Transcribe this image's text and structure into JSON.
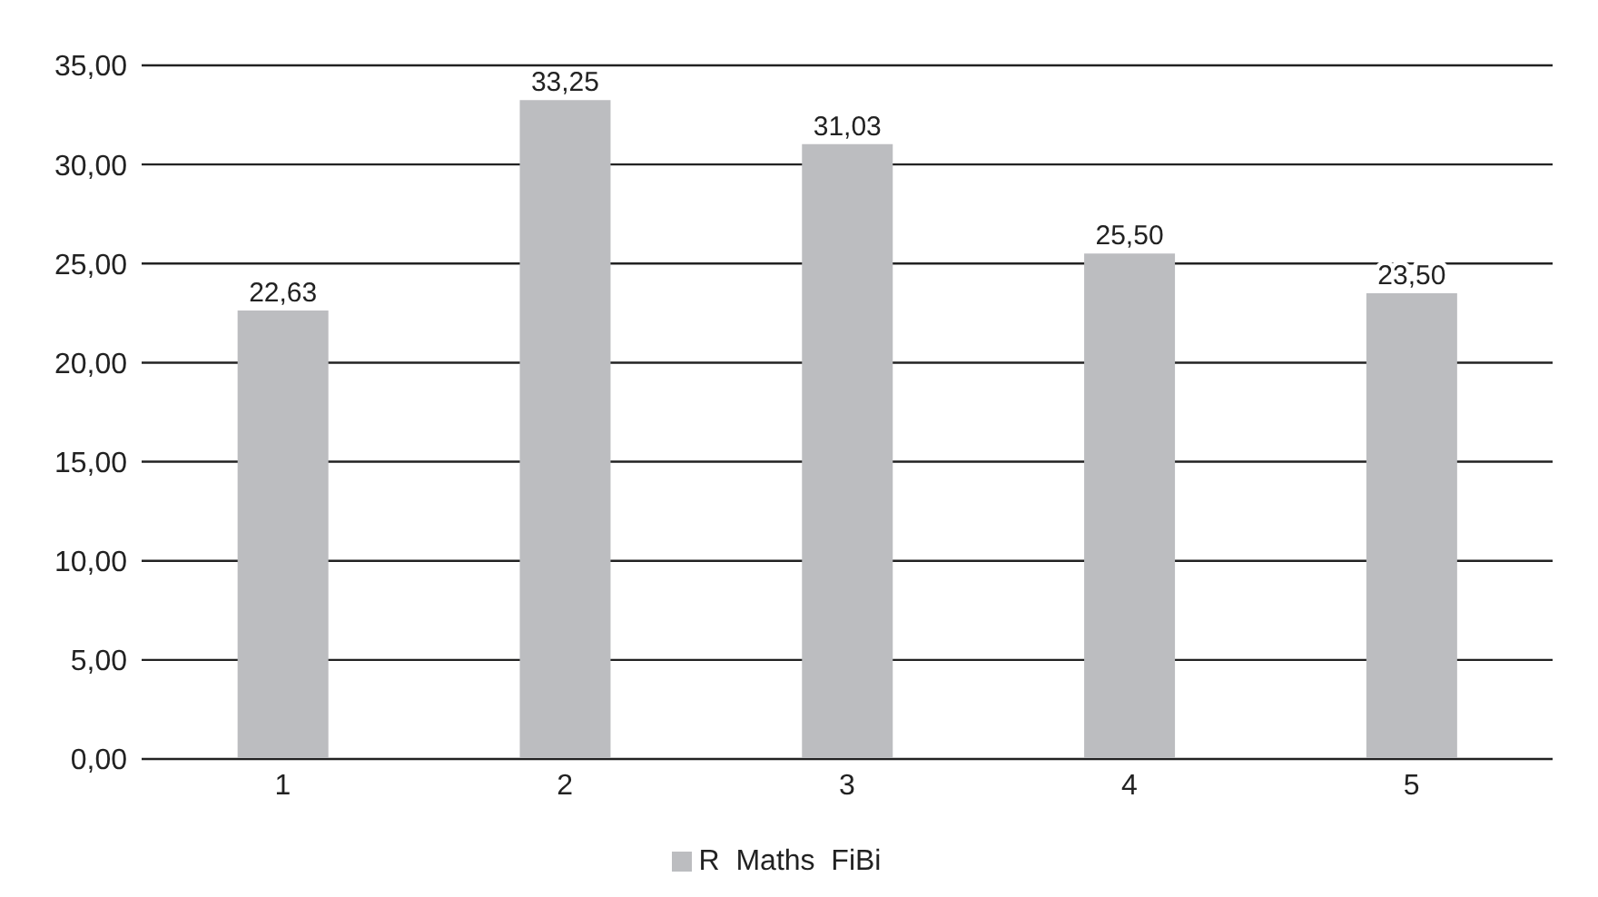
{
  "chart_data": {
    "type": "bar",
    "categories": [
      "1",
      "2",
      "3",
      "4",
      "5"
    ],
    "series": [
      {
        "name": "R  Maths  FiBi",
        "color": "#bcbdc0",
        "values": [
          22.63,
          33.25,
          31.03,
          25.5,
          23.5
        ],
        "value_labels": [
          "22,63",
          "33,25",
          "31,03",
          "25,50",
          "23,50"
        ]
      }
    ],
    "ylim": [
      0,
      35
    ],
    "yticks": [
      {
        "value": 0,
        "label": "0,00"
      },
      {
        "value": 5,
        "label": "5,00"
      },
      {
        "value": 10,
        "label": "10,00"
      },
      {
        "value": 15,
        "label": "15,00"
      },
      {
        "value": 20,
        "label": "20,00"
      },
      {
        "value": 25,
        "label": "25,00"
      },
      {
        "value": 30,
        "label": "30,00"
      },
      {
        "value": 35,
        "label": "35,00"
      }
    ],
    "grid": "y",
    "legend": "bottom"
  }
}
